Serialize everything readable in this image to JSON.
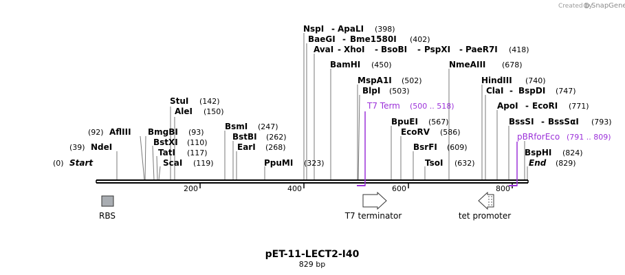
{
  "credit": {
    "prefix": "Created by",
    "brand": "SnapGene"
  },
  "title": "pET-11-LECT2-I40",
  "subtitle": "829 bp",
  "ticks": [
    "200",
    "400",
    "600",
    "800"
  ],
  "start": {
    "pos": "(0)",
    "label": "Start"
  },
  "end": {
    "pos": "(829)",
    "label": "End"
  },
  "sites": [
    {
      "name": "NdeI",
      "pos": "(39)"
    },
    {
      "name": "AflIII",
      "pos": "(92)"
    },
    {
      "name": "BmgBI",
      "pos": "(93)"
    },
    {
      "name": "BstXI",
      "pos": "(110)"
    },
    {
      "name": "TatI",
      "pos": "(117)"
    },
    {
      "name": "ScaI",
      "pos": "(119)"
    },
    {
      "name": "StuI",
      "pos": "(142)"
    },
    {
      "name": "AleI",
      "pos": "(150)"
    },
    {
      "name": "BsmI",
      "pos": "(247)"
    },
    {
      "name": "BstBI",
      "pos": "(262)"
    },
    {
      "name": "EarI",
      "pos": "(268)"
    },
    {
      "name": "PpuMI",
      "pos": "(323)"
    },
    {
      "name": "NspI",
      "name2": "ApaLI",
      "pos": "(398)"
    },
    {
      "name": "BaeGI",
      "name2": "Bme1580I",
      "pos": "(402)"
    },
    {
      "name": "AvaI",
      "name2": "XhoI",
      "name3": "BsoBI",
      "name4": "PspXI",
      "name5": "PaeR7I",
      "pos": "(418)"
    },
    {
      "name": "BamHI",
      "pos": "(450)"
    },
    {
      "name": "MspA1I",
      "pos": "(502)"
    },
    {
      "name": "BlpI",
      "pos": "(503)"
    },
    {
      "name": "BpuEI",
      "pos": "(567)"
    },
    {
      "name": "EcoRV",
      "pos": "(586)"
    },
    {
      "name": "BsrFI",
      "pos": "(609)"
    },
    {
      "name": "TsoI",
      "pos": "(632)"
    },
    {
      "name": "NmeAIII",
      "pos": "(678)"
    },
    {
      "name": "HindIII",
      "pos": "(740)"
    },
    {
      "name": "ClaI",
      "name2": "BspDI",
      "pos": "(747)"
    },
    {
      "name": "ApoI",
      "name2": "EcoRI",
      "pos": "(771)"
    },
    {
      "name": "BssSI",
      "name2": "BssSαI",
      "pos": "(793)"
    },
    {
      "name": "BspHI",
      "pos": "(824)"
    }
  ],
  "primers": [
    {
      "name": "T7 Term",
      "range": "(500 .. 518)"
    },
    {
      "name": "pBRforEco",
      "range": "(791 .. 809)"
    }
  ],
  "features": [
    {
      "name": "RBS"
    },
    {
      "name": "T7 terminator"
    },
    {
      "name": "tet promoter"
    }
  ],
  "colors": {
    "primer": "#9b30d9",
    "rbs_fill": "#a9adb2",
    "sequence": "#000000"
  }
}
